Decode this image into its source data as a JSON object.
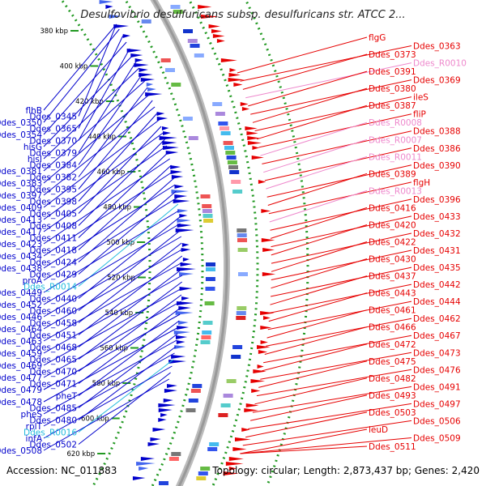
{
  "title": "Desulfovibrio desulfuricans subsp. desulfuricans str. ATCC 2...",
  "footer": {
    "accession": "Accession: NC_011883",
    "topology": "Topology: circular; Length: 2,873,437 bp; Genes: 2,420"
  },
  "colors": {
    "forward": "#e60000",
    "reverse": "#0000cc",
    "rna_pink": "#ee88cc",
    "rna_cyan": "#22bbdd",
    "backbone": "#999999",
    "dots": "#229922"
  },
  "kbp_ticks": [
    "380 kbp",
    "400 kbp",
    "420 kbp",
    "440 kbp",
    "460 kbp",
    "480 kbp",
    "500 kbp",
    "520 kbp",
    "540 kbp",
    "560 kbp",
    "580 kbp",
    "600 kbp",
    "620 kbp"
  ],
  "left_labels": [
    {
      "text": "flhB",
      "type": "reverse"
    },
    {
      "text": "Ddes_0345",
      "type": "reverse"
    },
    {
      "text": "Ddes_0350",
      "type": "reverse"
    },
    {
      "text": "Ddes_0365",
      "type": "reverse"
    },
    {
      "text": "Ddes_0354",
      "type": "reverse"
    },
    {
      "text": "Ddes_0370",
      "type": "reverse"
    },
    {
      "text": "hisG",
      "type": "reverse"
    },
    {
      "text": "Ddes_0379",
      "type": "reverse"
    },
    {
      "text": "hisI",
      "type": "reverse"
    },
    {
      "text": "Ddes_0384",
      "type": "reverse"
    },
    {
      "text": "Ddes_0381",
      "type": "reverse"
    },
    {
      "text": "Ddes_0382",
      "type": "reverse"
    },
    {
      "text": "Ddes_0383",
      "type": "reverse"
    },
    {
      "text": "Ddes_0395",
      "type": "reverse"
    },
    {
      "text": "Ddes_0397",
      "type": "reverse"
    },
    {
      "text": "Ddes_0398",
      "type": "reverse"
    },
    {
      "text": "Ddes_0409",
      "type": "reverse"
    },
    {
      "text": "Ddes_0405",
      "type": "reverse"
    },
    {
      "text": "Ddes_0413",
      "type": "reverse"
    },
    {
      "text": "Ddes_0408",
      "type": "reverse"
    },
    {
      "text": "Ddes_0417",
      "type": "reverse"
    },
    {
      "text": "Ddes_0411",
      "type": "reverse"
    },
    {
      "text": "Ddes_0423",
      "type": "reverse"
    },
    {
      "text": "Ddes_0418",
      "type": "reverse"
    },
    {
      "text": "Ddes_0434",
      "type": "reverse"
    },
    {
      "text": "Ddes_0424",
      "type": "reverse"
    },
    {
      "text": "Ddes_0438",
      "type": "reverse"
    },
    {
      "text": "Ddes_0429",
      "type": "reverse"
    },
    {
      "text": "proA",
      "type": "reverse"
    },
    {
      "text": "Ddes_R0014",
      "type": "rna_cyan"
    },
    {
      "text": "Ddes_0449",
      "type": "reverse"
    },
    {
      "text": "Ddes_0440",
      "type": "reverse"
    },
    {
      "text": "Ddes_0452",
      "type": "reverse"
    },
    {
      "text": "Ddes_0460",
      "type": "reverse"
    },
    {
      "text": "Ddes_0446",
      "type": "reverse"
    },
    {
      "text": "Ddes_0458",
      "type": "reverse"
    },
    {
      "text": "Ddes_0464",
      "type": "reverse"
    },
    {
      "text": "Ddes_0451",
      "type": "reverse"
    },
    {
      "text": "Ddes_0463",
      "type": "reverse"
    },
    {
      "text": "Ddes_0468",
      "type": "reverse"
    },
    {
      "text": "Ddes_0459",
      "type": "reverse"
    },
    {
      "text": "Ddes_0465",
      "type": "reverse"
    },
    {
      "text": "Ddes_0469",
      "type": "reverse"
    },
    {
      "text": "Ddes_0470",
      "type": "reverse"
    },
    {
      "text": "Ddes_0477",
      "type": "reverse"
    },
    {
      "text": "Ddes_0471",
      "type": "reverse"
    },
    {
      "text": "Ddes_0479",
      "type": "reverse"
    },
    {
      "text": "pheT",
      "type": "reverse"
    },
    {
      "text": "Ddes_0478",
      "type": "reverse"
    },
    {
      "text": "Ddes_0485",
      "type": "reverse"
    },
    {
      "text": "pheS",
      "type": "reverse"
    },
    {
      "text": "Ddes_0480",
      "type": "reverse"
    },
    {
      "text": "rplT",
      "type": "reverse"
    },
    {
      "text": "Ddes_R0016",
      "type": "rna_cyan"
    },
    {
      "text": "infA",
      "type": "reverse"
    },
    {
      "text": "Ddes_0502",
      "type": "reverse"
    },
    {
      "text": "Ddes_0508",
      "type": "reverse"
    }
  ],
  "right_labels": [
    {
      "text": "flgG",
      "type": "forward"
    },
    {
      "text": "Ddes_0363",
      "type": "forward"
    },
    {
      "text": "Ddes_0373",
      "type": "forward"
    },
    {
      "text": "Ddes_R0010",
      "type": "rna_pink"
    },
    {
      "text": "Ddes_0391",
      "type": "forward"
    },
    {
      "text": "Ddes_0369",
      "type": "forward"
    },
    {
      "text": "Ddes_0380",
      "type": "forward"
    },
    {
      "text": "ileS",
      "type": "forward"
    },
    {
      "text": "Ddes_0387",
      "type": "forward"
    },
    {
      "text": "fliP",
      "type": "forward"
    },
    {
      "text": "Ddes_R0008",
      "type": "rna_pink"
    },
    {
      "text": "Ddes_0388",
      "type": "forward"
    },
    {
      "text": "Ddes_R0007",
      "type": "rna_pink"
    },
    {
      "text": "Ddes_0386",
      "type": "forward"
    },
    {
      "text": "Ddes_R0011",
      "type": "rna_pink"
    },
    {
      "text": "Ddes_0390",
      "type": "forward"
    },
    {
      "text": "Ddes_0389",
      "type": "forward"
    },
    {
      "text": "flgH",
      "type": "forward"
    },
    {
      "text": "Ddes_R0013",
      "type": "rna_pink"
    },
    {
      "text": "Ddes_0396",
      "type": "forward"
    },
    {
      "text": "Ddes_0416",
      "type": "forward"
    },
    {
      "text": "Ddes_0433",
      "type": "forward"
    },
    {
      "text": "Ddes_0420",
      "type": "forward"
    },
    {
      "text": "Ddes_0432",
      "type": "forward"
    },
    {
      "text": "Ddes_0422",
      "type": "forward"
    },
    {
      "text": "Ddes_0431",
      "type": "forward"
    },
    {
      "text": "Ddes_0430",
      "type": "forward"
    },
    {
      "text": "Ddes_0435",
      "type": "forward"
    },
    {
      "text": "Ddes_0437",
      "type": "forward"
    },
    {
      "text": "Ddes_0442",
      "type": "forward"
    },
    {
      "text": "Ddes_0443",
      "type": "forward"
    },
    {
      "text": "Ddes_0444",
      "type": "forward"
    },
    {
      "text": "Ddes_0461",
      "type": "forward"
    },
    {
      "text": "Ddes_0462",
      "type": "forward"
    },
    {
      "text": "Ddes_0466",
      "type": "forward"
    },
    {
      "text": "Ddes_0467",
      "type": "forward"
    },
    {
      "text": "Ddes_0472",
      "type": "forward"
    },
    {
      "text": "Ddes_0473",
      "type": "forward"
    },
    {
      "text": "Ddes_0475",
      "type": "forward"
    },
    {
      "text": "Ddes_0476",
      "type": "forward"
    },
    {
      "text": "Ddes_0482",
      "type": "forward"
    },
    {
      "text": "Ddes_0491",
      "type": "forward"
    },
    {
      "text": "Ddes_0493",
      "type": "forward"
    },
    {
      "text": "Ddes_0497",
      "type": "forward"
    },
    {
      "text": "Ddes_0503",
      "type": "forward"
    },
    {
      "text": "Ddes_0506",
      "type": "forward"
    },
    {
      "text": "leuD",
      "type": "forward"
    },
    {
      "text": "Ddes_0509",
      "type": "forward"
    },
    {
      "text": "Ddes_0511",
      "type": "forward"
    }
  ]
}
